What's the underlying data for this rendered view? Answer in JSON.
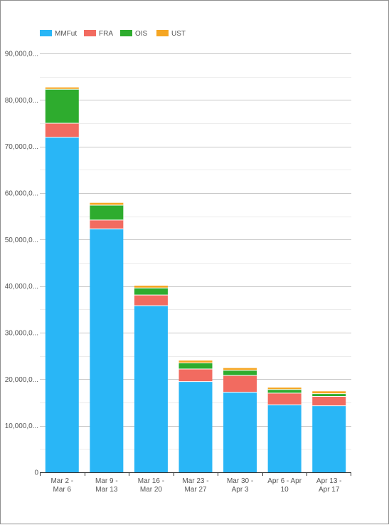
{
  "chart_data": {
    "type": "bar",
    "stacked": true,
    "categories": [
      [
        "Mar 2 -",
        "Mar 6"
      ],
      [
        "Mar 9 -",
        "Mar 13"
      ],
      [
        "Mar 16 -",
        "Mar 20"
      ],
      [
        "Mar 23 -",
        "Mar 27"
      ],
      [
        "Mar 30 -",
        "Apr 3"
      ],
      [
        "Apr 6 - Apr",
        "10"
      ],
      [
        "Apr 13 -",
        "Apr 17"
      ]
    ],
    "series": [
      {
        "name": "MMFut",
        "color": "#29b6f6",
        "values": [
          72000,
          52300,
          35800,
          19500,
          17200,
          14500,
          14300
        ]
      },
      {
        "name": "FRA",
        "color": "#f26b60",
        "values": [
          3000,
          1900,
          2300,
          2700,
          3600,
          2500,
          2000
        ]
      },
      {
        "name": "OIS",
        "color": "#2eac2e",
        "values": [
          7300,
          3200,
          1500,
          1300,
          1100,
          800,
          600
        ]
      },
      {
        "name": "UST",
        "color": "#f5a623",
        "values": [
          400,
          500,
          500,
          500,
          500,
          400,
          500
        ]
      }
    ],
    "ylim": [
      0,
      90000
    ],
    "yticks": [
      {
        "value": 0,
        "label": "0"
      },
      {
        "value": 10000,
        "label": "10,000,0..."
      },
      {
        "value": 20000,
        "label": "20,000,0..."
      },
      {
        "value": 30000,
        "label": "30,000,0..."
      },
      {
        "value": 40000,
        "label": "40,000,0..."
      },
      {
        "value": 50000,
        "label": "50,000,0..."
      },
      {
        "value": 60000,
        "label": "60,000,0..."
      },
      {
        "value": 70000,
        "label": "70,000,0..."
      },
      {
        "value": 80000,
        "label": "80,000,0..."
      },
      {
        "value": 90000,
        "label": "90,000,0..."
      }
    ],
    "grid": true,
    "legend_position": "top-left",
    "title": "",
    "xlabel": "",
    "ylabel": ""
  }
}
